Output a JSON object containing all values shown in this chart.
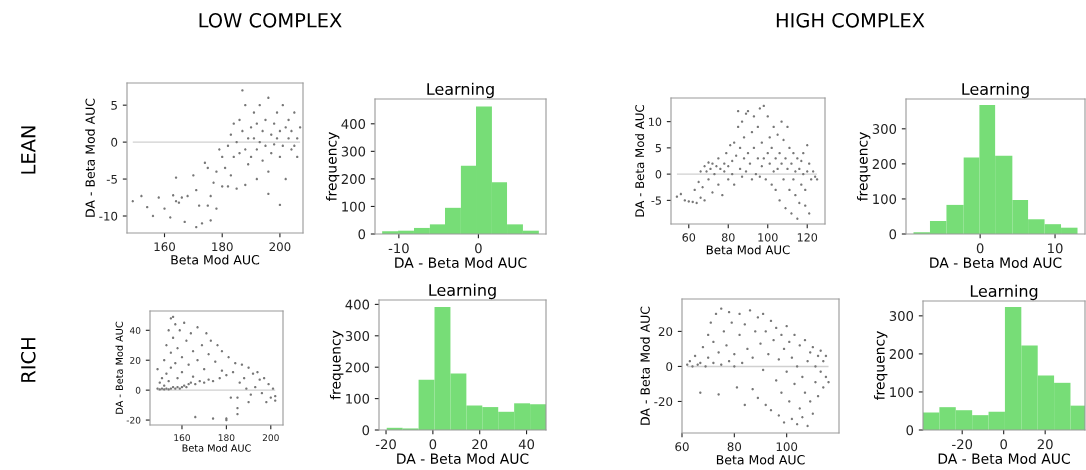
{
  "chart_data": [
    {
      "type": "scatter",
      "xlabel": "Beta Mod AUC",
      "ylabel": "DA - Beta Mod AUC",
      "annotations": [
        "LOW COMPLEX",
        "LEAN"
      ],
      "color": "#777777",
      "marker": "circle",
      "xlim": [
        147,
        208
      ],
      "ylim": [
        -12.3,
        8
      ],
      "xticks": [
        160,
        180,
        200
      ],
      "yticks": [
        -10,
        -5,
        0,
        5
      ],
      "ref_lines": [
        {
          "axis": "y",
          "value": 0,
          "color": "#d0d0d0"
        }
      ],
      "x": [
        149,
        152,
        154,
        156,
        158,
        160,
        162,
        163,
        164,
        164,
        165,
        166,
        167,
        168,
        170,
        171,
        171,
        172,
        173,
        174,
        175,
        175,
        176,
        176,
        177,
        178,
        178,
        179,
        180,
        180,
        181,
        182,
        182,
        183,
        183,
        184,
        184,
        185,
        185,
        186,
        186,
        187,
        187,
        188,
        188,
        189,
        189,
        190,
        190,
        191,
        191,
        192,
        192,
        193,
        193,
        194,
        194,
        195,
        195,
        196,
        196,
        197,
        197,
        198,
        198,
        199,
        199,
        200,
        200,
        201,
        201,
        202,
        202,
        203,
        203,
        204,
        204,
        205,
        205,
        206,
        206,
        207,
        200,
        196,
        192,
        188
      ],
      "values": [
        -8,
        -7.3,
        -8.8,
        -10,
        -7.5,
        -9,
        -10.2,
        -7.2,
        -8,
        -4.8,
        -8.2,
        -7.5,
        -10.8,
        -7.3,
        -4.5,
        -11.5,
        -6.5,
        -8.6,
        -11,
        -2.8,
        -3.5,
        -8.6,
        -10.6,
        -7.3,
        -5.5,
        -4,
        -9,
        -1,
        -2,
        -6,
        -3.5,
        -0.5,
        -6,
        1,
        -4.5,
        2.5,
        -2,
        0,
        -6.3,
        3,
        -1.5,
        7,
        1.5,
        5,
        -1,
        0.5,
        -3,
        2,
        -2,
        4,
        0.5,
        -1,
        2.5,
        5,
        0,
        -2.5,
        1.5,
        3,
        -0.5,
        6,
        -4,
        1,
        -1.5,
        2.5,
        -0.3,
        4,
        0.5,
        -2,
        1.5,
        5,
        -0.5,
        2,
        -5,
        0.5,
        3,
        -1,
        1.5,
        4,
        -0.5,
        0.5,
        -2,
        2,
        -8.5,
        -7,
        -5,
        -5.8
      ]
    },
    {
      "type": "histogram",
      "title": "Learning",
      "xlabel": "DA - Beta Mod AUC",
      "ylabel": "frequency",
      "color": "#77dd77",
      "xlim": [
        -13,
        8.5
      ],
      "ylim": [
        0,
        490
      ],
      "xticks": [
        -10,
        0
      ],
      "yticks": [
        0,
        100,
        200,
        300,
        400
      ],
      "bins": [
        -12.1,
        -10.1,
        -8.1,
        -6.1,
        -4.2,
        -2.2,
        -0.3,
        1.7,
        3.6,
        5.6,
        7.6
      ],
      "values": [
        10,
        12,
        22,
        35,
        95,
        248,
        463,
        188,
        35,
        12
      ]
    },
    {
      "type": "scatter",
      "xlabel": "Beta Mod AUC",
      "ylabel": "DA - Beta Mod AUC",
      "annotations": [
        "HIGH COMPLEX"
      ],
      "color": "#777777",
      "marker": "circle",
      "xlim": [
        51,
        129
      ],
      "ylim": [
        -9.5,
        14.5
      ],
      "xticks": [
        60,
        80,
        100,
        120
      ],
      "yticks": [
        -5,
        0,
        5,
        10
      ],
      "ref_lines": [
        {
          "axis": "y",
          "value": 0,
          "color": "#d0d0d0"
        }
      ],
      "x": [
        54,
        56,
        58,
        60,
        62,
        63,
        64,
        65,
        66,
        66,
        67,
        68,
        68,
        69,
        70,
        70,
        71,
        72,
        72,
        73,
        74,
        75,
        75,
        76,
        77,
        78,
        78,
        79,
        80,
        80,
        81,
        82,
        82,
        83,
        83,
        84,
        85,
        85,
        86,
        86,
        87,
        87,
        88,
        88,
        89,
        89,
        90,
        90,
        91,
        92,
        92,
        93,
        93,
        94,
        95,
        95,
        96,
        96,
        97,
        97,
        98,
        98,
        99,
        100,
        100,
        101,
        101,
        102,
        102,
        103,
        103,
        104,
        104,
        105,
        105,
        106,
        106,
        107,
        107,
        108,
        108,
        109,
        109,
        110,
        110,
        111,
        111,
        112,
        112,
        113,
        113,
        114,
        114,
        115,
        115,
        116,
        116,
        117,
        117,
        118,
        118,
        119,
        119,
        120,
        120,
        121,
        121,
        122,
        123,
        124,
        125
      ],
      "values": [
        -4.3,
        -3.8,
        -5,
        -5.2,
        -5.3,
        -3,
        -5.5,
        -1.5,
        -4.5,
        0.5,
        -2.5,
        1.5,
        -5,
        0.5,
        2.2,
        -1,
        1,
        -3.5,
        2,
        0,
        1.5,
        -2,
        3,
        1,
        -4,
        2,
        0.5,
        4,
        1.5,
        -1,
        5.5,
        2.5,
        0,
        6,
        -2,
        3.5,
        9,
        12,
        1,
        5,
        10,
        -0.5,
        3,
        7,
        11.5,
        0.5,
        4,
        12,
        2,
        8,
        -1,
        5,
        11,
        0,
        3,
        9,
        12.5,
        -0.5,
        6,
        1.5,
        13,
        3,
        -1,
        11,
        4,
        2,
        7,
        -2,
        5,
        0.5,
        9,
        3,
        -3,
        7.5,
        1,
        -5,
        4,
        10,
        2,
        -1,
        6.5,
        3,
        -6.5,
        1,
        9,
        -3,
        5,
        2,
        -7.5,
        -1,
        4,
        0.5,
        -4,
        3,
        -8.5,
        1,
        -5.5,
        2.5,
        -2,
        0,
        4,
        -3,
        -6,
        5.5,
        0.5,
        -7.5,
        2,
        -1,
        0.5,
        -0.5,
        -1
      ]
    },
    {
      "type": "histogram",
      "title": "Learning",
      "xlabel": "DA - Beta Mod AUC",
      "ylabel": "frequency",
      "color": "#77dd77",
      "xlim": [
        -9.9,
        14
      ],
      "ylim": [
        0,
        385
      ],
      "xticks": [
        0,
        10
      ],
      "yticks": [
        0,
        100,
        200,
        300
      ],
      "bins": [
        -8.9,
        -6.7,
        -4.5,
        -2.2,
        -0.1,
        2,
        4.3,
        6.4,
        8.6,
        10.8,
        13
      ],
      "values": [
        5,
        37,
        83,
        218,
        368,
        223,
        97,
        42,
        28,
        18
      ]
    },
    {
      "type": "scatter",
      "xlabel": "Beta Mod AUC",
      "ylabel": "DA - Beta Mod AUC",
      "annotations": [
        "RICH"
      ],
      "color": "#777777",
      "marker": "circle",
      "xlim": [
        145.6,
        205.5
      ],
      "ylim": [
        -23.3,
        52.9
      ],
      "xticks": [
        160,
        180,
        200
      ],
      "yticks": [
        -20,
        0,
        20,
        40
      ],
      "ref_lines": [
        {
          "axis": "y",
          "value": 0,
          "color": "#d0d0d0"
        }
      ],
      "x": [
        149,
        149,
        150,
        150,
        151,
        151,
        152,
        152,
        152,
        153,
        153,
        153,
        154,
        154,
        154,
        155,
        155,
        155,
        155,
        156,
        156,
        156,
        157,
        157,
        157,
        158,
        158,
        158,
        159,
        159,
        160,
        160,
        160,
        161,
        161,
        162,
        162,
        163,
        163,
        164,
        164,
        165,
        165,
        166,
        166,
        167,
        167,
        168,
        169,
        170,
        170,
        171,
        172,
        172,
        173,
        174,
        174,
        175,
        176,
        177,
        178,
        178,
        180,
        180,
        180,
        181,
        182,
        183,
        184,
        185,
        185,
        185,
        186,
        187,
        188,
        189,
        190,
        190,
        191,
        192,
        193,
        194,
        195,
        196,
        197,
        198,
        199,
        200,
        201,
        202,
        202
      ],
      "values": [
        1,
        14,
        0.5,
        5,
        1,
        8,
        0.5,
        20,
        3,
        1,
        30,
        11,
        0.5,
        40,
        6,
        1,
        48,
        25,
        15,
        2,
        49,
        35,
        1,
        44,
        18,
        2,
        28,
        8,
        1,
        40,
        2,
        22,
        12,
        3,
        45,
        2,
        33,
        4,
        17,
        38,
        5,
        26,
        9,
        4,
        -18,
        42,
        20,
        6,
        30,
        5,
        14,
        38,
        7,
        24,
        33,
        -19,
        6,
        19,
        30,
        8,
        26,
        13,
        10,
        -19,
        -20,
        22,
        -5,
        12,
        18,
        -5,
        -16,
        -12,
        5,
        17,
        8,
        1,
        15,
        -8,
        -3,
        11,
        2,
        12,
        7,
        -2,
        8,
        -8,
        4,
        -5,
        1,
        -7,
        -4
      ]
    },
    {
      "type": "histogram",
      "title": "Learning",
      "xlabel": "DA - Beta Mod AUC",
      "ylabel": "frequency",
      "color": "#77dd77",
      "xlim": [
        -23,
        48.3
      ],
      "ylim": [
        0,
        414
      ],
      "xticks": [
        -20,
        0,
        20,
        40
      ],
      "yticks": [
        0,
        100,
        200,
        300,
        400
      ],
      "bins": [
        -19.7,
        -12.9,
        -6.1,
        0.7,
        7.5,
        14.3,
        21.1,
        27.9,
        34.7,
        41.5,
        48.3
      ],
      "values": [
        7,
        5,
        160,
        392,
        180,
        78,
        73,
        58,
        85,
        82
      ]
    },
    {
      "type": "scatter",
      "xlabel": "Beta Mod AUC",
      "ylabel": "DA - Beta Mod AUC",
      "color": "#777777",
      "marker": "circle",
      "xlim": [
        60,
        120
      ],
      "ylim": [
        -38,
        38.5
      ],
      "xticks": [
        60,
        80,
        100
      ],
      "yticks": [
        -20,
        0,
        20
      ],
      "ref_lines": [
        {
          "axis": "y",
          "value": 0,
          "color": "#d0d0d0"
        }
      ],
      "x": [
        62,
        63,
        64,
        65,
        66,
        67,
        67,
        68,
        69,
        70,
        70,
        71,
        72,
        72,
        73,
        74,
        74,
        75,
        75,
        76,
        77,
        78,
        78,
        79,
        80,
        80,
        81,
        82,
        82,
        83,
        84,
        84,
        85,
        86,
        87,
        87,
        88,
        89,
        89,
        90,
        91,
        91,
        92,
        92,
        93,
        94,
        94,
        95,
        96,
        96,
        97,
        97,
        98,
        98,
        99,
        99,
        100,
        100,
        101,
        101,
        102,
        102,
        103,
        103,
        104,
        104,
        105,
        105,
        106,
        106,
        107,
        107,
        108,
        108,
        109,
        109,
        110,
        110,
        111,
        111,
        112,
        112,
        113,
        113,
        114,
        114,
        115,
        115,
        116
      ],
      "values": [
        1,
        3,
        0,
        6,
        1,
        -15,
        2,
        11,
        0,
        18,
        5,
        25,
        2,
        14,
        30,
        -16,
        8,
        33,
        1,
        20,
        12,
        3,
        31,
        25,
        7,
        0,
        -12,
        18,
        30,
        2,
        -22,
        24,
        10,
        32,
        -13,
        5,
        20,
        -18,
        28,
        13,
        -2,
        30,
        -22,
        20,
        7,
        -25,
        26,
        15,
        -8,
        22,
        -28,
        4,
        -15,
        18,
        -32,
        10,
        -3,
        23,
        -20,
        14,
        -30,
        5,
        -10,
        18,
        -33,
        0,
        -24,
        12,
        -6,
        -29,
        15,
        -15,
        3,
        -34,
        -20,
        8,
        -27,
        11,
        -9,
        0,
        -17,
        6,
        -3,
        9,
        -12,
        3,
        -6,
        6,
        -9
      ]
    },
    {
      "type": "histogram",
      "title": "Learning",
      "xlabel": "DA - Beta Mod AUC",
      "ylabel": "frequency",
      "color": "#77dd77",
      "xlim": [
        -38.9,
        39.2
      ],
      "ylim": [
        0,
        339
      ],
      "xticks": [
        -20,
        0,
        20
      ],
      "yticks": [
        0,
        100,
        200,
        300
      ],
      "bins": [
        -38.9,
        -31,
        -23.1,
        -15.2,
        -7.3,
        0.6,
        8.5,
        16.4,
        24.3,
        32.2,
        40.1
      ],
      "values": [
        46,
        60,
        52,
        39,
        48,
        323,
        222,
        143,
        124,
        64
      ]
    }
  ]
}
